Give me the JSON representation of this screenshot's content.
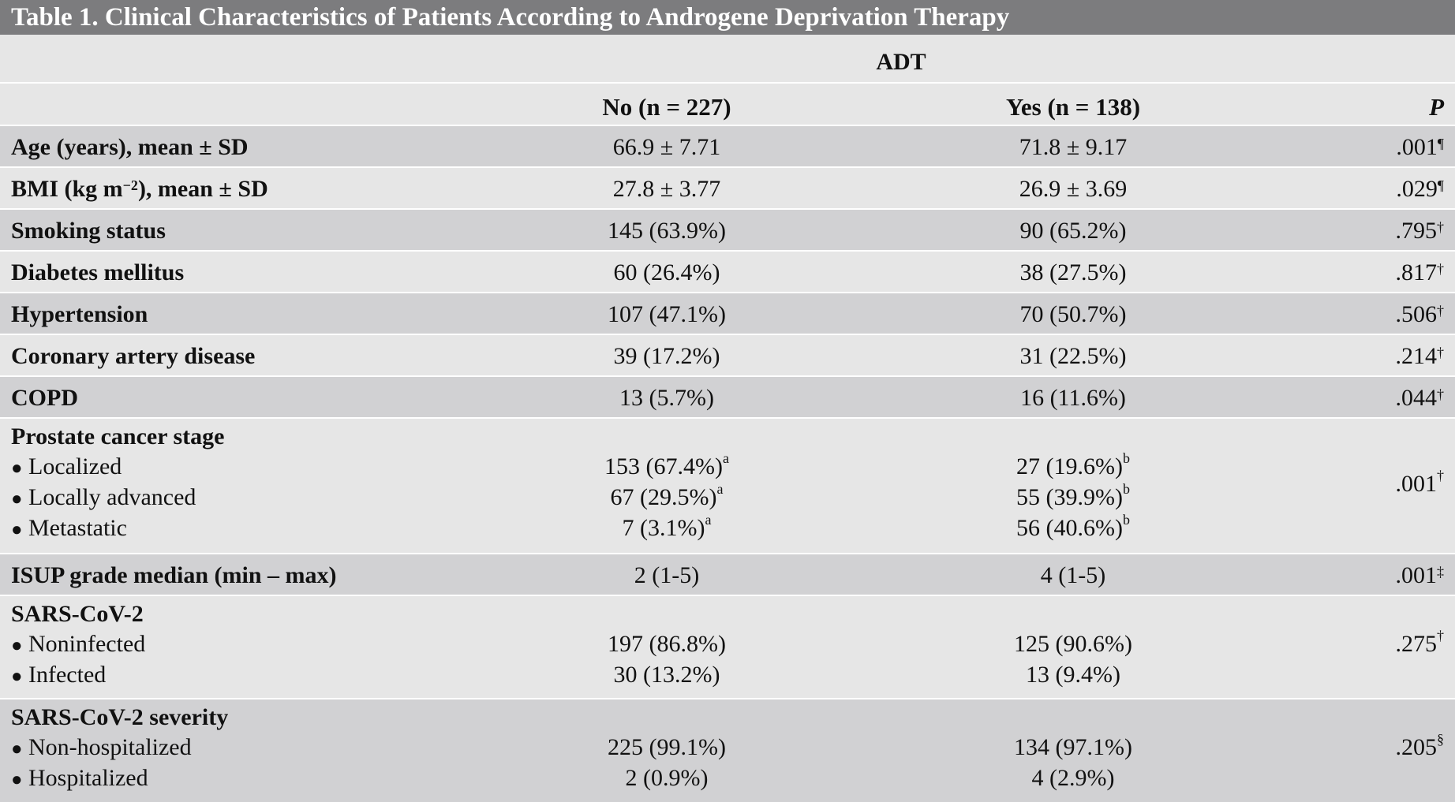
{
  "table": {
    "title": "Table 1. Clinical Characteristics of Patients According to Androgene Deprivation Therapy",
    "group_header": "ADT",
    "columns": {
      "no": "No (n = 227)",
      "yes": "Yes (n = 138)",
      "p": "P"
    },
    "rows": [
      {
        "label": "Age (years), mean ± SD",
        "no": "66.9 ± 7.71",
        "yes": "71.8 ± 9.17",
        "p": ".001",
        "p_mark": "¶"
      },
      {
        "label_pre": "BMI (kg m",
        "label_sup": "−2",
        "label_post": "), mean ± SD",
        "no": "27.8 ± 3.77",
        "yes": "26.9 ± 3.69",
        "p": ".029",
        "p_mark": "¶"
      },
      {
        "label": "Smoking status",
        "no": "145 (63.9%)",
        "yes": "90 (65.2%)",
        "p": ".795",
        "p_mark": "†"
      },
      {
        "label": "Diabetes mellitus",
        "no": "60 (26.4%)",
        "yes": "38 (27.5%)",
        "p": ".817",
        "p_mark": "†"
      },
      {
        "label": "Hypertension",
        "no": "107 (47.1%)",
        "yes": "70 (50.7%)",
        "p": ".506",
        "p_mark": "†"
      },
      {
        "label": "Coronary artery disease",
        "no": "39 (17.2%)",
        "yes": "31 (22.5%)",
        "p": ".214",
        "p_mark": "†"
      },
      {
        "label": "COPD",
        "no": "13 (5.7%)",
        "yes": "16 (11.6%)",
        "p": ".044",
        "p_mark": "†"
      }
    ],
    "stage": {
      "label": "Prostate cancer stage",
      "p": ".001",
      "p_mark": "†",
      "items": [
        {
          "label": "Localized",
          "no": "153 (67.4%)",
          "no_mark": "a",
          "yes": "27 (19.6%)",
          "yes_mark": "b"
        },
        {
          "label": "Locally advanced",
          "no": "67 (29.5%)",
          "no_mark": "a",
          "yes": "55 (39.9%)",
          "yes_mark": "b"
        },
        {
          "label": "Metastatic",
          "no": "7 (3.1%)",
          "no_mark": "a",
          "yes": "56 (40.6%)",
          "yes_mark": "b"
        }
      ]
    },
    "isup": {
      "label": "ISUP grade median (min – max)",
      "no": "2 (1-5)",
      "yes": "4 (1-5)",
      "p": ".001",
      "p_mark": "‡"
    },
    "sars": {
      "label": "SARS-CoV-2",
      "p": ".275",
      "p_mark": "†",
      "items": [
        {
          "label": "Noninfected",
          "no": "197 (86.8%)",
          "yes": "125 (90.6%)"
        },
        {
          "label": "Infected",
          "no": "30 (13.2%)",
          "yes": "13 (9.4%)"
        }
      ]
    },
    "severity": {
      "label": "SARS-CoV-2 severity",
      "p": ".205",
      "p_mark": "§",
      "items": [
        {
          "label": "Non-hospitalized",
          "no": "225 (99.1%)",
          "yes": "134 (97.1%)"
        },
        {
          "label": "Hospitalized",
          "no": "2 (0.9%)",
          "yes": "4 (2.9%)"
        }
      ]
    },
    "bullet": "●"
  }
}
